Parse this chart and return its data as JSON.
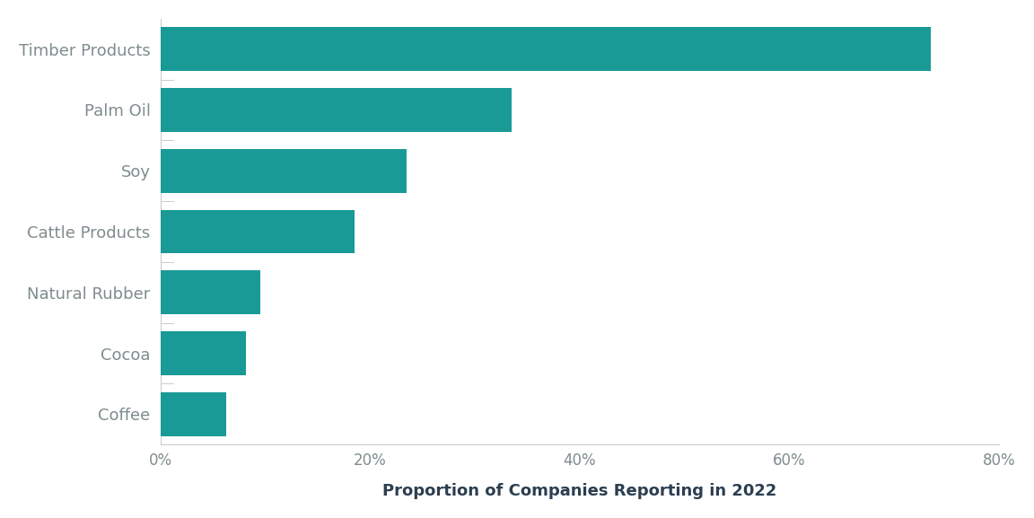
{
  "categories": [
    "Coffee",
    "Cocoa",
    "Natural Rubber",
    "Cattle Products",
    "Soy",
    "Palm Oil",
    "Timber Products"
  ],
  "values": [
    0.063,
    0.082,
    0.095,
    0.185,
    0.235,
    0.335,
    0.735
  ],
  "bar_color": "#1A9A96",
  "xlabel": "Proportion of Companies Reporting in 2022",
  "xlim": [
    0,
    0.8
  ],
  "xticks": [
    0.0,
    0.2,
    0.4,
    0.6,
    0.8
  ],
  "xtick_labels": [
    "0%",
    "20%",
    "40%",
    "60%",
    "80%"
  ],
  "background_color": "#ffffff",
  "label_color": "#7f8c8d",
  "xlabel_color": "#2c3e50",
  "bar_height": 0.72,
  "figure_width": 11.52,
  "figure_height": 5.77,
  "dpi": 100,
  "tick_color": "#aaaaaa",
  "separator_color": "#cccccc"
}
